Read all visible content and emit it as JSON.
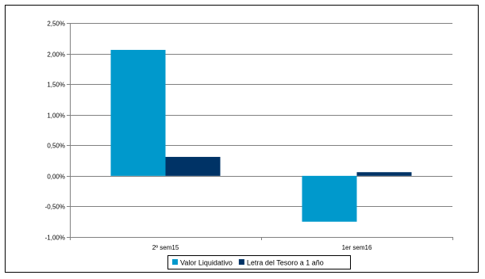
{
  "chart_data": {
    "type": "bar",
    "categories": [
      "2º sem15",
      "1er sem16"
    ],
    "series": [
      {
        "name": "Valor Liquidativo",
        "values": [
          2.06,
          -0.75
        ]
      },
      {
        "name": "Letra del Tesoro a 1 año",
        "values": [
          0.31,
          0.06
        ]
      }
    ],
    "ylim": [
      -1.0,
      2.5
    ],
    "yticks": [
      2.5,
      2.0,
      1.5,
      1.0,
      0.5,
      0.0,
      -0.5,
      -1.0
    ],
    "ytick_labels": [
      "2,50%",
      "2,00%",
      "1,50%",
      "1,00%",
      "0,50%",
      "0,00%",
      "-0,50%",
      "-1,00%"
    ],
    "grid": true,
    "legend_position": "bottom",
    "title": "",
    "xlabel": "",
    "ylabel": "",
    "colors": {
      "series": [
        "#0099cc",
        "#003366"
      ],
      "grid": "#808080",
      "axis": "#808080"
    }
  }
}
